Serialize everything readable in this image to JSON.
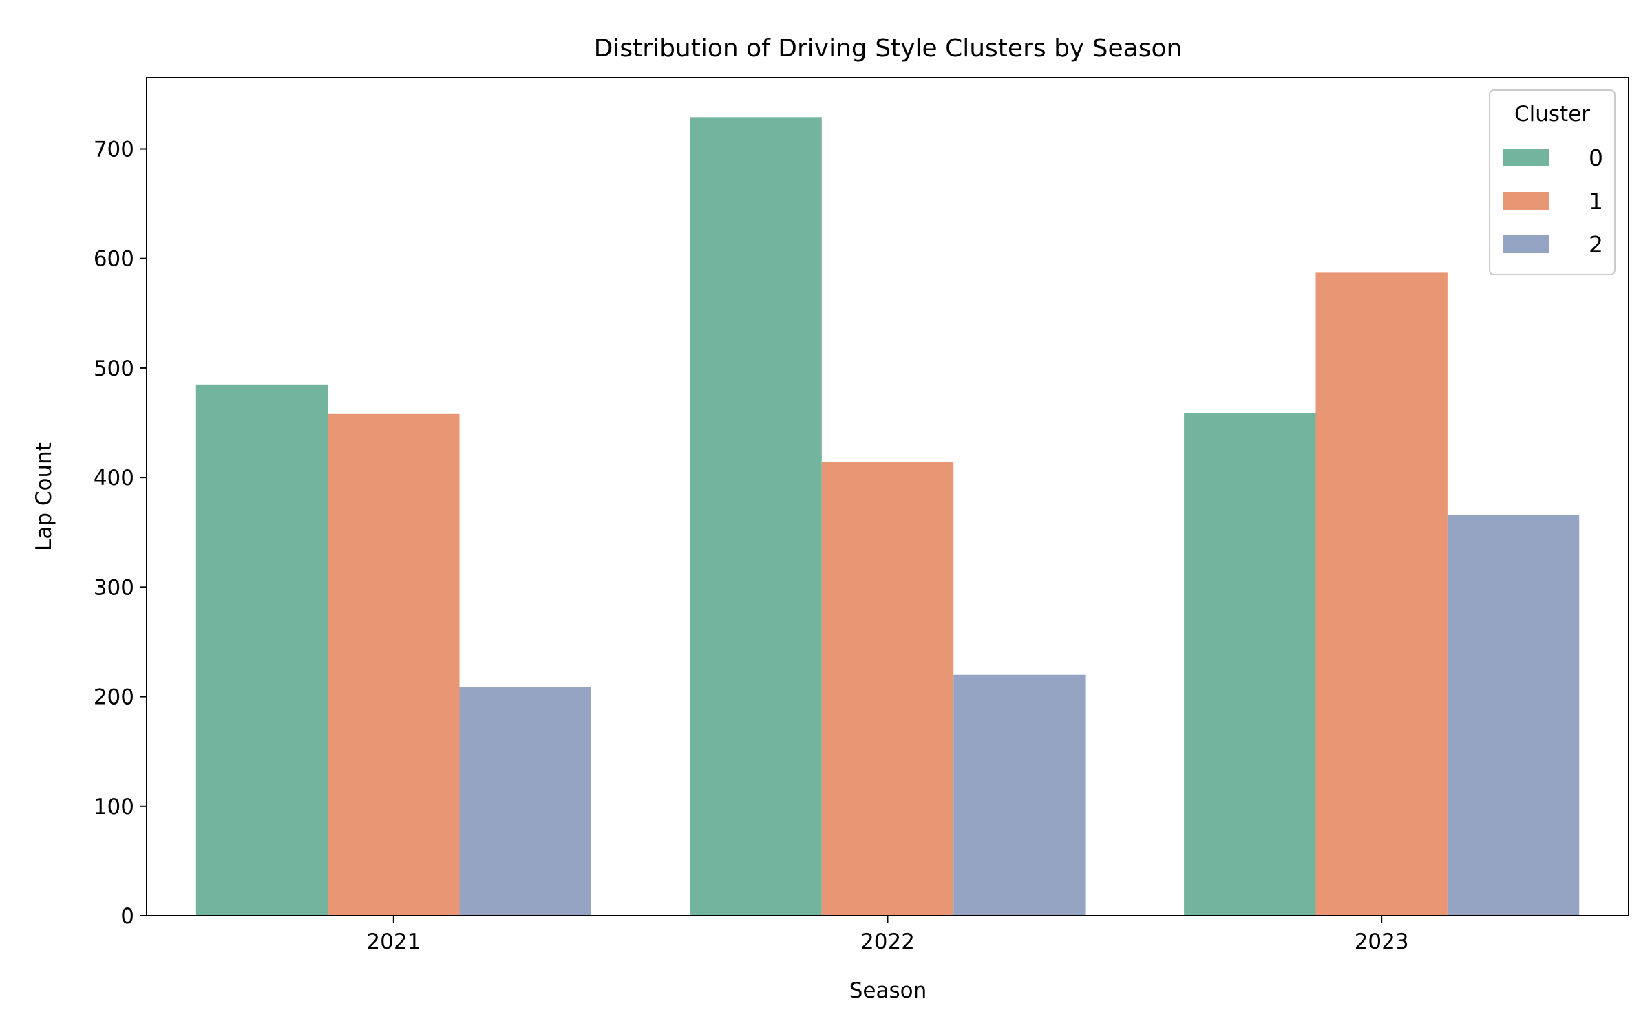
{
  "chart_data": {
    "type": "bar",
    "title": "Distribution of Driving Style Clusters by Season",
    "xlabel": "Season",
    "ylabel": "Lap Count",
    "categories": [
      "2021",
      "2022",
      "2023"
    ],
    "ylim": [
      0,
      765
    ],
    "yticks": [
      0,
      100,
      200,
      300,
      400,
      500,
      600,
      700
    ],
    "series": [
      {
        "name": "0",
        "color": "#73b49f",
        "values": [
          485,
          729,
          459
        ]
      },
      {
        "name": "1",
        "color": "#e89674",
        "values": [
          458,
          414,
          587
        ]
      },
      {
        "name": "2",
        "color": "#95a4c2",
        "values": [
          209,
          220,
          366
        ]
      }
    ],
    "legend": {
      "title": "Cluster",
      "position": "top-right"
    },
    "grid": false
  }
}
